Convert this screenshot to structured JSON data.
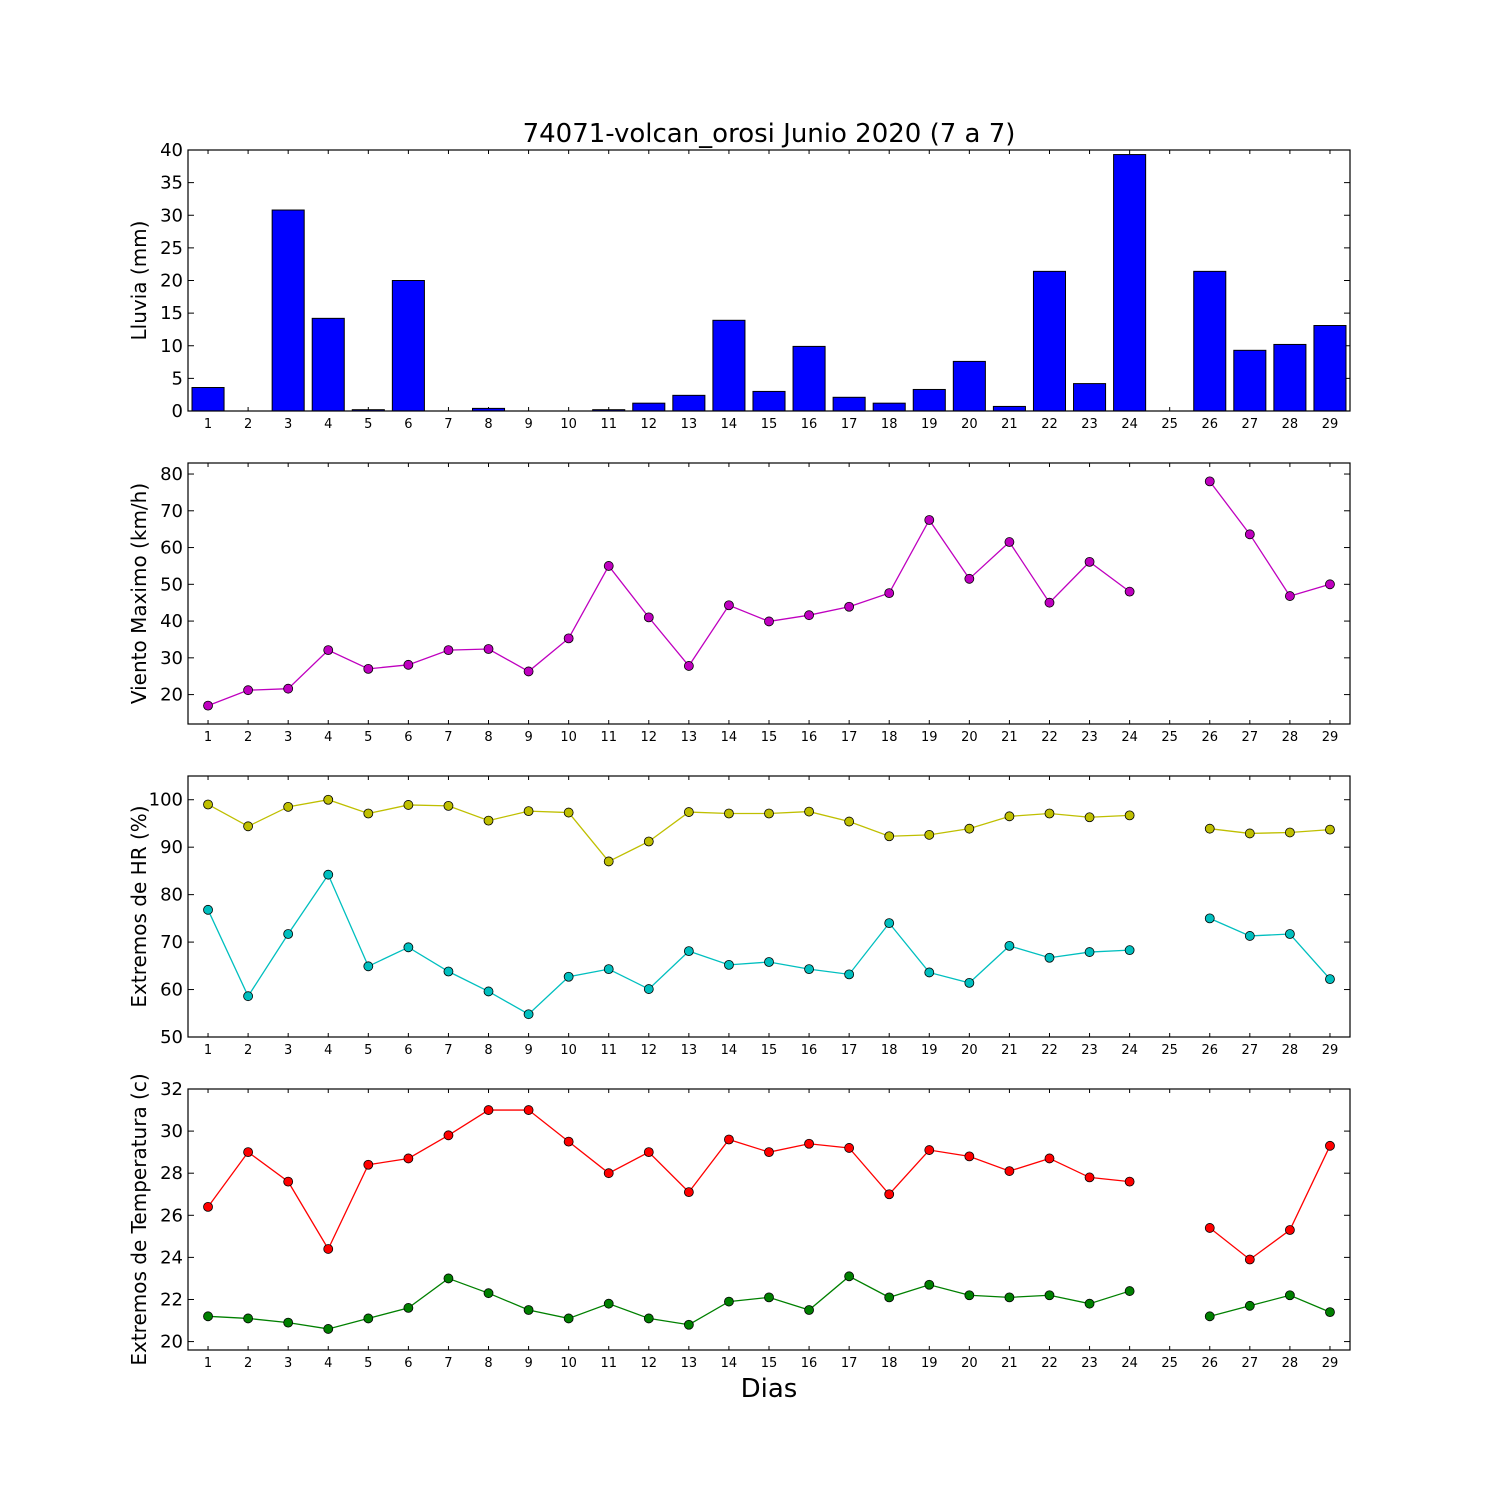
{
  "chart_data": {
    "title": "74071-volcan_orosi Junio 2020  (7 a 7)",
    "xlabel": "Dias",
    "categories": [
      "1",
      "2",
      "3",
      "4",
      "5",
      "6",
      "7",
      "8",
      "9",
      "10",
      "11",
      "12",
      "13",
      "14",
      "15",
      "16",
      "17",
      "18",
      "19",
      "20",
      "21",
      "22",
      "23",
      "24",
      "25",
      "26",
      "27",
      "28",
      "29"
    ],
    "panels": [
      {
        "type": "bar",
        "ylabel": "Lluvia (mm)",
        "ylim": [
          0,
          40
        ],
        "yticks": [
          0,
          5,
          10,
          15,
          20,
          25,
          30,
          35,
          40
        ],
        "series": [
          {
            "color": "#0000ff",
            "values": [
              3.6,
              0,
              30.8,
              14.2,
              0.2,
              20.0,
              0,
              0.4,
              0,
              0,
              0.2,
              1.2,
              2.4,
              13.9,
              3.0,
              9.9,
              2.1,
              1.2,
              3.3,
              7.6,
              0.7,
              21.4,
              4.2,
              39.3,
              0,
              21.4,
              9.3,
              10.2,
              13.1
            ]
          }
        ]
      },
      {
        "type": "line",
        "ylabel": "Viento Maximo (km/h)",
        "ylim": [
          12,
          83
        ],
        "yticks": [
          20,
          30,
          40,
          50,
          60,
          70,
          80
        ],
        "series": [
          {
            "color": "#bf00bf",
            "values": [
              17.0,
              21.2,
              21.6,
              32.1,
              27.0,
              28.1,
              32.1,
              32.4,
              26.3,
              35.3,
              55.0,
              41.0,
              27.8,
              44.3,
              39.9,
              41.6,
              43.9,
              47.6,
              67.5,
              51.5,
              61.5,
              45.0,
              56.1,
              48.0,
              null,
              78.0,
              63.6,
              46.8,
              50.0
            ]
          }
        ]
      },
      {
        "type": "line",
        "ylabel": "Extremos de HR (%)",
        "ylim": [
          50,
          105
        ],
        "yticks": [
          50,
          60,
          70,
          80,
          90,
          100
        ],
        "series": [
          {
            "color": "#bfbf00",
            "values": [
              99.0,
              94.4,
              98.5,
              100.0,
              97.1,
              98.9,
              98.7,
              95.6,
              97.6,
              97.3,
              87.0,
              91.2,
              97.4,
              97.1,
              97.1,
              97.5,
              95.4,
              92.3,
              92.6,
              93.9,
              96.5,
              97.1,
              96.3,
              96.7,
              null,
              93.9,
              92.9,
              93.1,
              93.7
            ]
          },
          {
            "color": "#00bfbf",
            "values": [
              76.8,
              58.6,
              71.7,
              84.2,
              64.9,
              68.9,
              63.8,
              59.6,
              54.8,
              62.7,
              64.3,
              60.1,
              68.1,
              65.2,
              65.8,
              64.3,
              63.2,
              74.0,
              63.6,
              61.4,
              69.2,
              66.7,
              67.9,
              68.3,
              null,
              75.0,
              71.3,
              71.7,
              62.2
            ]
          }
        ]
      },
      {
        "type": "line",
        "ylabel": "Extremos de Temperatura (c)",
        "ylim": [
          19.6,
          32
        ],
        "yticks": [
          20,
          22,
          24,
          26,
          28,
          30,
          32
        ],
        "series": [
          {
            "color": "#ff0000",
            "values": [
              26.4,
              29.0,
              27.6,
              24.4,
              28.4,
              28.7,
              29.8,
              31.0,
              31.0,
              29.5,
              28.0,
              29.0,
              27.1,
              29.6,
              29.0,
              29.4,
              29.2,
              27.0,
              29.1,
              28.8,
              28.1,
              28.7,
              27.8,
              27.6,
              null,
              25.4,
              23.9,
              25.3,
              29.3
            ]
          },
          {
            "color": "#008000",
            "values": [
              21.2,
              21.1,
              20.9,
              20.6,
              21.1,
              21.6,
              23.0,
              22.3,
              21.5,
              21.1,
              21.8,
              21.1,
              20.8,
              21.9,
              22.1,
              21.5,
              23.1,
              22.1,
              22.7,
              22.2,
              22.1,
              22.2,
              21.8,
              22.4,
              null,
              21.2,
              21.7,
              22.2,
              21.4
            ]
          }
        ]
      }
    ]
  }
}
